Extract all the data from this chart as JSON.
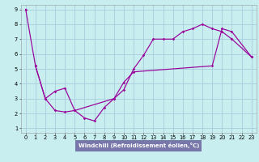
{
  "xlabel": "Windchill (Refroidissement éolien,°C)",
  "bg_color": "#c8eef0",
  "line_color": "#990099",
  "grid_color": "#aaccdd",
  "xlim": [
    -0.5,
    23.5
  ],
  "ylim": [
    0.7,
    9.3
  ],
  "xticks": [
    0,
    1,
    2,
    3,
    4,
    5,
    6,
    7,
    8,
    9,
    10,
    11,
    12,
    13,
    14,
    15,
    16,
    17,
    18,
    19,
    20,
    21,
    22,
    23
  ],
  "yticks": [
    1,
    2,
    3,
    4,
    5,
    6,
    7,
    8,
    9
  ],
  "xlabel_bg": "#7777aa",
  "xlabel_fontsize": 5.0,
  "tick_fontsize": 4.8,
  "line1_x": [
    0,
    1,
    2,
    3,
    4,
    5,
    6,
    7,
    8,
    9,
    10,
    11,
    12,
    13,
    14,
    15,
    16,
    17,
    18,
    19,
    20,
    21
  ],
  "line1_y": [
    9.0,
    5.2,
    3.0,
    3.5,
    3.7,
    2.2,
    1.7,
    1.5,
    2.4,
    3.0,
    3.6,
    5.0,
    5.9,
    7.0,
    7.0,
    7.0,
    7.5,
    7.7,
    8.0,
    7.7,
    7.5,
    7.0
  ],
  "line2_x": [
    1,
    2,
    3,
    4,
    5,
    9,
    10,
    11,
    19,
    20,
    21,
    23
  ],
  "line2_y": [
    5.2,
    3.0,
    2.2,
    2.1,
    2.2,
    3.0,
    4.1,
    4.8,
    5.2,
    7.7,
    7.5,
    5.8
  ],
  "line3_x": [
    21,
    23
  ],
  "line3_y": [
    7.0,
    5.8
  ]
}
